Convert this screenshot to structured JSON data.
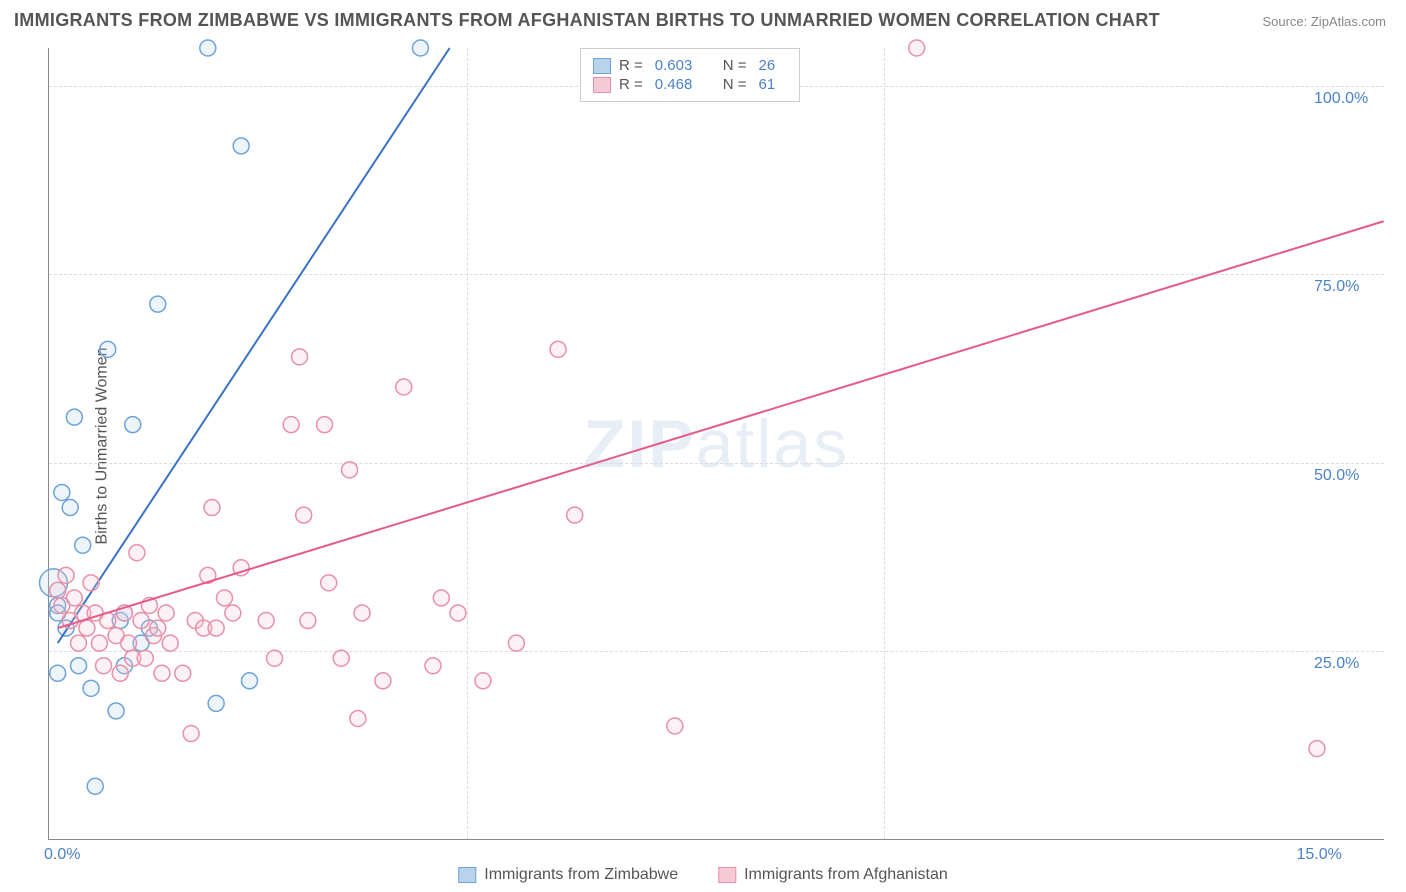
{
  "title": "IMMIGRANTS FROM ZIMBABWE VS IMMIGRANTS FROM AFGHANISTAN BIRTHS TO UNMARRIED WOMEN CORRELATION CHART",
  "source_label": "Source: ZipAtlas.com",
  "watermark": "ZIPatlas",
  "y_axis_label": "Births to Unmarried Women",
  "chart": {
    "type": "scatter",
    "background_color": "#ffffff",
    "grid_color": "#dddddd",
    "axis_color": "#888888",
    "text_color": "#555555",
    "tick_label_color": "#4a83c8",
    "xlim": [
      0,
      16
    ],
    "ylim": [
      0,
      105
    ],
    "x_ticks": [
      {
        "value": 0,
        "label": "0.0%"
      },
      {
        "value": 15,
        "label": "15.0%"
      }
    ],
    "y_ticks": [
      {
        "value": 25,
        "label": "25.0%"
      },
      {
        "value": 50,
        "label": "50.0%"
      },
      {
        "value": 75,
        "label": "75.0%"
      },
      {
        "value": 100,
        "label": "100.0%"
      }
    ],
    "x_gridlines": [
      5,
      10
    ],
    "marker_radius": 8,
    "marker_stroke_width": 1.5,
    "marker_fill_opacity": 0.25,
    "line_width": 2,
    "series": [
      {
        "name": "Immigrants from Zimbabwe",
        "color_stroke": "#6ca3d8",
        "color_fill": "#b9d3ec",
        "line_color": "#3a72c4",
        "R": "0.603",
        "N": "26",
        "trend": {
          "x1": 0.1,
          "y1": 26,
          "x2": 4.8,
          "y2": 105
        },
        "points": [
          {
            "x": 0.05,
            "y": 34,
            "r": 14
          },
          {
            "x": 0.1,
            "y": 31
          },
          {
            "x": 0.1,
            "y": 30
          },
          {
            "x": 0.1,
            "y": 22
          },
          {
            "x": 0.15,
            "y": 46
          },
          {
            "x": 0.2,
            "y": 28
          },
          {
            "x": 0.25,
            "y": 44
          },
          {
            "x": 0.3,
            "y": 56
          },
          {
            "x": 0.35,
            "y": 23
          },
          {
            "x": 0.4,
            "y": 39
          },
          {
            "x": 0.5,
            "y": 20
          },
          {
            "x": 0.55,
            "y": 7
          },
          {
            "x": 0.7,
            "y": 65
          },
          {
            "x": 0.8,
            "y": 17
          },
          {
            "x": 0.85,
            "y": 29
          },
          {
            "x": 0.9,
            "y": 23
          },
          {
            "x": 0.9,
            "y": 30
          },
          {
            "x": 1.0,
            "y": 55
          },
          {
            "x": 1.1,
            "y": 26
          },
          {
            "x": 1.2,
            "y": 28
          },
          {
            "x": 1.3,
            "y": 71
          },
          {
            "x": 1.9,
            "y": 105
          },
          {
            "x": 2.0,
            "y": 18
          },
          {
            "x": 2.3,
            "y": 92
          },
          {
            "x": 2.4,
            "y": 21
          },
          {
            "x": 4.45,
            "y": 105
          }
        ]
      },
      {
        "name": "Immigrants from Afghanistan",
        "color_stroke": "#e890a8",
        "color_fill": "#f5c9d5",
        "line_color": "#e55a8a",
        "R": "0.468",
        "N": "61",
        "trend": {
          "x1": 0.1,
          "y1": 28,
          "x2": 16,
          "y2": 82
        },
        "points": [
          {
            "x": 0.1,
            "y": 33
          },
          {
            "x": 0.15,
            "y": 31
          },
          {
            "x": 0.2,
            "y": 35
          },
          {
            "x": 0.25,
            "y": 29
          },
          {
            "x": 0.3,
            "y": 32
          },
          {
            "x": 0.35,
            "y": 26
          },
          {
            "x": 0.4,
            "y": 30
          },
          {
            "x": 0.45,
            "y": 28
          },
          {
            "x": 0.5,
            "y": 34
          },
          {
            "x": 0.55,
            "y": 30
          },
          {
            "x": 0.6,
            "y": 26
          },
          {
            "x": 0.65,
            "y": 23
          },
          {
            "x": 0.7,
            "y": 29
          },
          {
            "x": 0.8,
            "y": 27
          },
          {
            "x": 0.85,
            "y": 22
          },
          {
            "x": 0.9,
            "y": 30
          },
          {
            "x": 0.95,
            "y": 26
          },
          {
            "x": 1.0,
            "y": 24
          },
          {
            "x": 1.05,
            "y": 38
          },
          {
            "x": 1.1,
            "y": 29
          },
          {
            "x": 1.15,
            "y": 24
          },
          {
            "x": 1.2,
            "y": 31
          },
          {
            "x": 1.25,
            "y": 27
          },
          {
            "x": 1.3,
            "y": 28
          },
          {
            "x": 1.35,
            "y": 22
          },
          {
            "x": 1.4,
            "y": 30
          },
          {
            "x": 1.45,
            "y": 26
          },
          {
            "x": 1.6,
            "y": 22
          },
          {
            "x": 1.7,
            "y": 14
          },
          {
            "x": 1.75,
            "y": 29
          },
          {
            "x": 1.85,
            "y": 28
          },
          {
            "x": 1.9,
            "y": 35
          },
          {
            "x": 1.95,
            "y": 44
          },
          {
            "x": 2.0,
            "y": 28
          },
          {
            "x": 2.1,
            "y": 32
          },
          {
            "x": 2.2,
            "y": 30
          },
          {
            "x": 2.3,
            "y": 36
          },
          {
            "x": 2.6,
            "y": 29
          },
          {
            "x": 2.7,
            "y": 24
          },
          {
            "x": 2.9,
            "y": 55
          },
          {
            "x": 3.0,
            "y": 64
          },
          {
            "x": 3.05,
            "y": 43
          },
          {
            "x": 3.1,
            "y": 29
          },
          {
            "x": 3.3,
            "y": 55
          },
          {
            "x": 3.35,
            "y": 34
          },
          {
            "x": 3.5,
            "y": 24
          },
          {
            "x": 3.6,
            "y": 49
          },
          {
            "x": 3.7,
            "y": 16
          },
          {
            "x": 3.75,
            "y": 30
          },
          {
            "x": 4.0,
            "y": 21
          },
          {
            "x": 4.25,
            "y": 60
          },
          {
            "x": 4.6,
            "y": 23
          },
          {
            "x": 4.7,
            "y": 32
          },
          {
            "x": 4.9,
            "y": 30
          },
          {
            "x": 5.2,
            "y": 21
          },
          {
            "x": 5.6,
            "y": 26
          },
          {
            "x": 6.1,
            "y": 65
          },
          {
            "x": 6.3,
            "y": 43
          },
          {
            "x": 7.5,
            "y": 15
          },
          {
            "x": 10.4,
            "y": 105
          },
          {
            "x": 15.2,
            "y": 12
          }
        ]
      }
    ]
  },
  "legend_top": {
    "R_label": "R =",
    "N_label": "N ="
  }
}
